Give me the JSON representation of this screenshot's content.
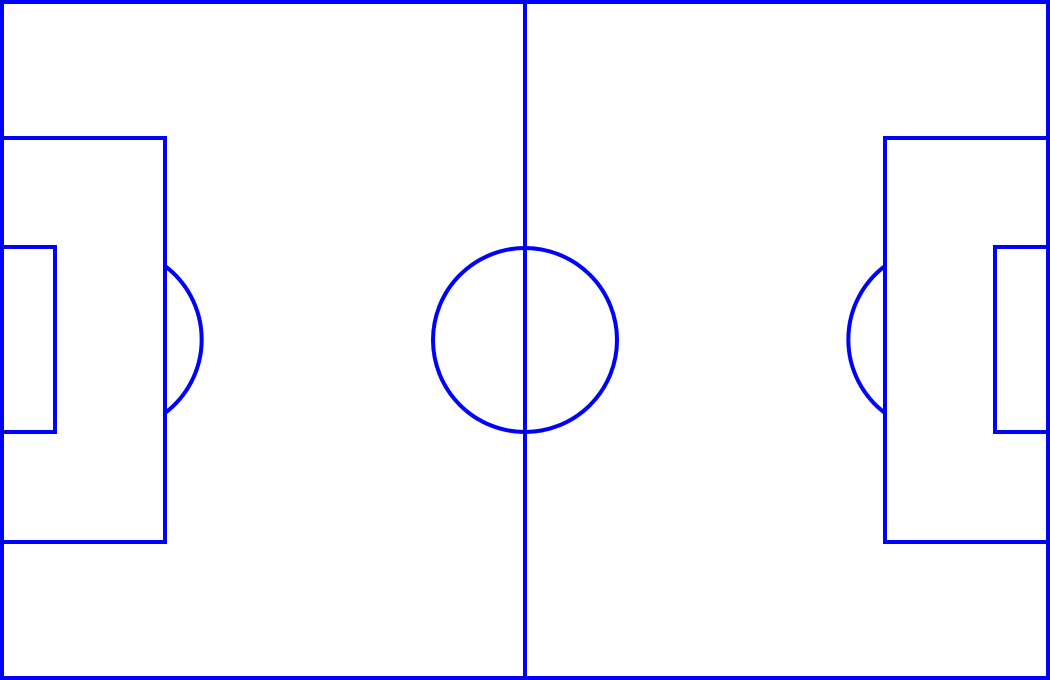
{
  "colors": {
    "background": "#ffffff",
    "line": "#0000ff"
  }
}
